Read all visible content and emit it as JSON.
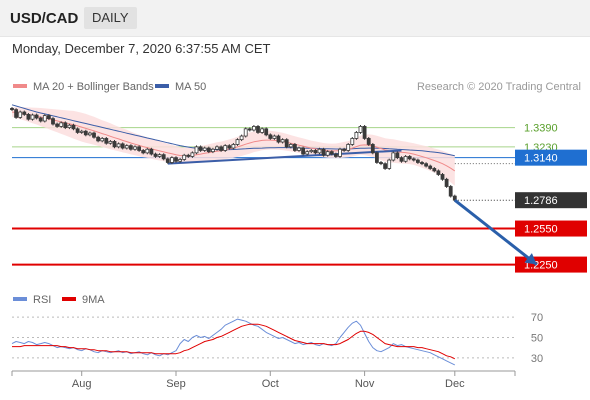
{
  "header": {
    "symbol": "USD/CAD",
    "timeframe": "DAILY",
    "timestamp": "Monday, December 7, 2020 6:37:55 AM CET"
  },
  "colors": {
    "price": "#3a3a3a",
    "ma20": "#f08a8a",
    "bollinger_fill": "#fbdede",
    "ma50": "#3b5ea8",
    "trendline": "#3b5ea8",
    "resistance": "#a6d48a",
    "support": "#e00000",
    "current_price_tag": "#333333",
    "pivot_tag": "#1f6fd1",
    "forecast_arrow": "#2a5faa",
    "rsi": "#6b8ed8",
    "rsi_ma": "#e00000"
  },
  "chart_data": [
    {
      "type": "line",
      "legend": [
        {
          "name": "MA 20 + Bollinger Bands",
          "color": "#f08a8a"
        },
        {
          "name": "MA 50",
          "color": "#3b5ea8"
        }
      ],
      "credit": "Research © 2020 Trading Central",
      "ylim": [
        1.208,
        1.362
      ],
      "x_ticks": [
        "Aug",
        "Sep",
        "Oct",
        "Nov",
        "Dec"
      ],
      "x_tick_index": [
        17,
        40,
        63,
        86,
        108
      ],
      "price": [
        1.354,
        1.3475,
        1.352,
        1.35,
        1.346,
        1.3495,
        1.347,
        1.3445,
        1.349,
        1.3465,
        1.342,
        1.34,
        1.343,
        1.339,
        1.341,
        1.338,
        1.335,
        1.336,
        1.333,
        1.3345,
        1.331,
        1.328,
        1.33,
        1.326,
        1.3275,
        1.323,
        1.3255,
        1.322,
        1.324,
        1.321,
        1.323,
        1.32,
        1.318,
        1.321,
        1.317,
        1.315,
        1.3165,
        1.313,
        1.31,
        1.314,
        1.311,
        1.3125,
        1.316,
        1.315,
        1.318,
        1.323,
        1.32,
        1.322,
        1.319,
        1.321,
        1.323,
        1.32,
        1.324,
        1.322,
        1.325,
        1.329,
        1.332,
        1.338,
        1.337,
        1.34,
        1.335,
        1.338,
        1.333,
        1.33,
        1.332,
        1.327,
        1.329,
        1.323,
        1.325,
        1.32,
        1.322,
        1.317,
        1.319,
        1.32,
        1.318,
        1.321,
        1.316,
        1.319,
        1.317,
        1.315,
        1.321,
        1.32,
        1.325,
        1.33,
        1.335,
        1.34,
        1.33,
        1.325,
        1.318,
        1.31,
        1.309,
        1.305,
        1.312,
        1.318,
        1.314,
        1.311,
        1.315,
        1.313,
        1.312,
        1.31,
        1.309,
        1.307,
        1.305,
        1.303,
        1.3,
        1.296,
        1.29,
        1.282,
        1.2786
      ],
      "ma20": [
        1.352,
        1.3515,
        1.351,
        1.3505,
        1.3498,
        1.3492,
        1.3486,
        1.3478,
        1.347,
        1.3462,
        1.3454,
        1.3446,
        1.3438,
        1.343,
        1.3422,
        1.3414,
        1.3404,
        1.3394,
        1.3384,
        1.3374,
        1.3364,
        1.3352,
        1.334,
        1.333,
        1.3318,
        1.3306,
        1.3296,
        1.3284,
        1.3274,
        1.3262,
        1.3252,
        1.3242,
        1.3232,
        1.3224,
        1.3214,
        1.3205,
        1.3196,
        1.3188,
        1.318,
        1.3172,
        1.3165,
        1.3158,
        1.3155,
        1.3155,
        1.3158,
        1.3164,
        1.317,
        1.3176,
        1.3182,
        1.3188,
        1.3194,
        1.3198,
        1.3205,
        1.3212,
        1.322,
        1.323,
        1.324,
        1.3252,
        1.3262,
        1.3272,
        1.3278,
        1.3284,
        1.3286,
        1.3286,
        1.3284,
        1.328,
        1.3275,
        1.3268,
        1.326,
        1.3252,
        1.3244,
        1.3236,
        1.3228,
        1.322,
        1.3214,
        1.3208,
        1.3202,
        1.3198,
        1.3196,
        1.3196,
        1.32,
        1.3205,
        1.321,
        1.322,
        1.3232,
        1.3244,
        1.3246,
        1.3244,
        1.3238,
        1.3228,
        1.3216,
        1.3204,
        1.3198,
        1.3195,
        1.319,
        1.3185,
        1.3182,
        1.3176,
        1.317,
        1.316,
        1.315,
        1.314,
        1.3128,
        1.3116,
        1.3104,
        1.309,
        1.3072,
        1.3052,
        1.303
      ],
      "bollinger_width": [
        0.004,
        0.0045,
        0.005,
        0.0055,
        0.006,
        0.0065,
        0.007,
        0.0075,
        0.008,
        0.0085,
        0.009,
        0.0095,
        0.01,
        0.0105,
        0.011,
        0.0115,
        0.0118,
        0.012,
        0.012,
        0.0118,
        0.0116,
        0.0114,
        0.0112,
        0.011,
        0.0108,
        0.0105,
        0.0102,
        0.01,
        0.0098,
        0.0095,
        0.0092,
        0.009,
        0.0088,
        0.0086,
        0.0084,
        0.0082,
        0.008,
        0.0078,
        0.0076,
        0.0074,
        0.0072,
        0.007,
        0.0068,
        0.0066,
        0.0065,
        0.0065,
        0.0066,
        0.0068,
        0.007,
        0.0072,
        0.0074,
        0.0076,
        0.0078,
        0.008,
        0.0082,
        0.0084,
        0.0086,
        0.0088,
        0.0088,
        0.0086,
        0.0084,
        0.0082,
        0.008,
        0.0078,
        0.0076,
        0.0074,
        0.0072,
        0.007,
        0.0068,
        0.0066,
        0.0065,
        0.0064,
        0.0063,
        0.0062,
        0.0061,
        0.006,
        0.006,
        0.006,
        0.0061,
        0.0062,
        0.0064,
        0.0066,
        0.0068,
        0.007,
        0.0075,
        0.008,
        0.0085,
        0.009,
        0.0092,
        0.0094,
        0.0096,
        0.0098,
        0.0098,
        0.0098,
        0.0096,
        0.0094,
        0.0092,
        0.009,
        0.009,
        0.0092,
        0.0094,
        0.0096,
        0.0098,
        0.01,
        0.0104,
        0.0108,
        0.0112,
        0.0118,
        0.0124
      ],
      "ma50": [
        1.358,
        1.357,
        1.356,
        1.355,
        1.354,
        1.353,
        1.352,
        1.3512,
        1.3504,
        1.3496,
        1.3488,
        1.348,
        1.3472,
        1.3464,
        1.3456,
        1.3448,
        1.344,
        1.3432,
        1.3424,
        1.3416,
        1.3408,
        1.34,
        1.3392,
        1.3384,
        1.3376,
        1.3368,
        1.336,
        1.3352,
        1.3344,
        1.3336,
        1.3328,
        1.332,
        1.3312,
        1.3304,
        1.3296,
        1.3288,
        1.328,
        1.3272,
        1.3264,
        1.3256,
        1.3248,
        1.324,
        1.3234,
        1.3228,
        1.3222,
        1.3218,
        1.3214,
        1.3212,
        1.321,
        1.3208,
        1.3207,
        1.3206,
        1.3206,
        1.3207,
        1.3208,
        1.321,
        1.3212,
        1.3214,
        1.3216,
        1.3218,
        1.3219,
        1.322,
        1.3221,
        1.3222,
        1.3223,
        1.3224,
        1.3224,
        1.3224,
        1.3223,
        1.3222,
        1.3221,
        1.322,
        1.3219,
        1.3218,
        1.3217,
        1.3216,
        1.3215,
        1.3214,
        1.3213,
        1.3212,
        1.3212,
        1.3212,
        1.3213,
        1.3214,
        1.3216,
        1.3218,
        1.3219,
        1.322,
        1.322,
        1.3219,
        1.3218,
        1.3216,
        1.3214,
        1.3212,
        1.321,
        1.3208,
        1.3206,
        1.3204,
        1.3202,
        1.32,
        1.3197,
        1.3194,
        1.319,
        1.3186,
        1.3182,
        1.3176,
        1.317,
        1.3163,
        1.3156
      ],
      "trendline": {
        "start": {
          "index": 38,
          "value": 1.309
        },
        "end": {
          "index": 95,
          "value": 1.32
        }
      },
      "levels": [
        {
          "label": "1.3390",
          "value": 1.339,
          "kind": "resistance"
        },
        {
          "label": "1.3230",
          "value": 1.323,
          "kind": "resistance"
        },
        {
          "label": "1.3140",
          "value": 1.314,
          "kind": "pivot"
        },
        {
          "label": "1.2550",
          "value": 1.255,
          "kind": "support"
        },
        {
          "label": "1.2250",
          "value": 1.225,
          "kind": "support"
        }
      ],
      "current_price": {
        "label": "1.2786",
        "value": 1.2786
      },
      "forecast_arrow": {
        "from": {
          "index": 108,
          "value": 1.2786
        },
        "to": {
          "index": 128,
          "value": 1.225
        }
      }
    },
    {
      "type": "line",
      "legend": [
        {
          "name": "RSI",
          "color": "#6b8ed8"
        },
        {
          "name": "9MA",
          "color": "#e00000"
        }
      ],
      "y_ticks": [
        70,
        50,
        30
      ],
      "y_tick_labels": [
        "70",
        "50",
        "30"
      ],
      "ylim": [
        20,
        75
      ],
      "rsi": [
        44,
        46,
        45,
        44,
        46,
        45,
        43,
        44,
        45,
        44,
        42,
        40,
        41,
        40,
        39,
        40,
        38,
        37,
        39,
        38,
        36,
        35,
        37,
        36,
        35,
        36,
        37,
        35,
        36,
        34,
        35,
        36,
        34,
        33,
        35,
        33,
        32,
        34,
        33,
        35,
        37,
        44,
        48,
        46,
        50,
        52,
        50,
        51,
        49,
        52,
        55,
        58,
        62,
        64,
        66,
        68,
        67,
        66,
        64,
        62,
        61,
        58,
        55,
        53,
        51,
        49,
        50,
        48,
        46,
        44,
        45,
        43,
        44,
        45,
        43,
        42,
        44,
        43,
        42,
        44,
        50,
        55,
        60,
        64,
        66,
        62,
        54,
        46,
        40,
        37,
        36,
        38,
        40,
        44,
        42,
        43,
        41,
        40,
        39,
        38,
        37,
        36,
        35,
        33,
        31,
        29,
        27,
        25,
        23
      ],
      "rsi_ma": [
        41,
        41,
        41,
        42,
        42,
        42,
        42,
        42,
        42,
        42,
        42,
        42,
        41,
        41,
        40,
        40,
        39,
        39,
        39,
        38,
        38,
        37,
        37,
        37,
        36,
        36,
        36,
        36,
        36,
        35,
        35,
        35,
        35,
        35,
        35,
        34,
        34,
        34,
        34,
        34,
        34,
        35,
        37,
        38,
        40,
        42,
        44,
        46,
        47,
        48,
        50,
        51,
        53,
        55,
        57,
        59,
        61,
        62,
        63,
        63,
        63,
        62,
        61,
        59,
        57,
        55,
        53,
        51,
        49,
        47,
        46,
        45,
        44,
        44,
        44,
        44,
        44,
        43,
        43,
        43,
        44,
        46,
        48,
        51,
        54,
        56,
        56,
        55,
        53,
        50,
        47,
        44,
        43,
        42,
        41,
        41,
        41,
        41,
        41,
        40,
        40,
        39,
        38,
        37,
        36,
        34,
        32,
        31,
        29
      ]
    }
  ]
}
